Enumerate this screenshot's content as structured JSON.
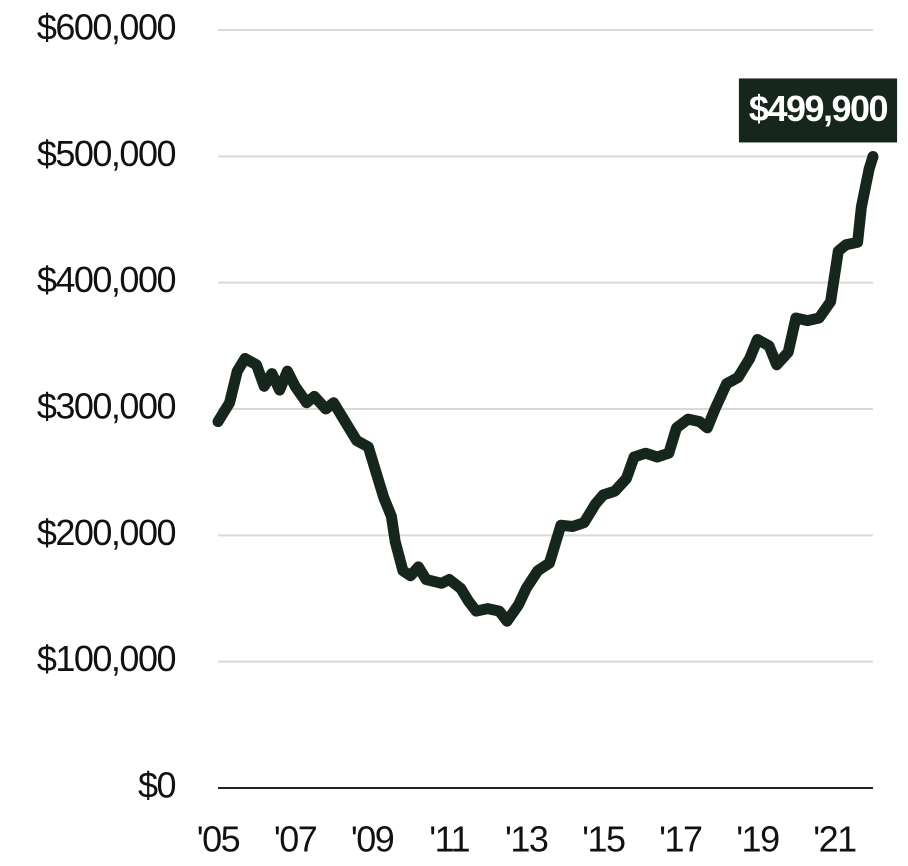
{
  "chart_data": {
    "type": "line",
    "x": [
      2005.0,
      2005.3,
      2005.5,
      2005.7,
      2006.0,
      2006.2,
      2006.4,
      2006.6,
      2006.8,
      2007.0,
      2007.3,
      2007.5,
      2007.8,
      2008.0,
      2008.3,
      2008.6,
      2008.9,
      2009.1,
      2009.3,
      2009.5,
      2009.6,
      2009.8,
      2010.0,
      2010.2,
      2010.4,
      2010.8,
      2011.0,
      2011.3,
      2011.5,
      2011.7,
      2012.0,
      2012.3,
      2012.5,
      2012.8,
      2013.0,
      2013.3,
      2013.6,
      2013.9,
      2014.2,
      2014.5,
      2014.8,
      2015.0,
      2015.3,
      2015.6,
      2015.8,
      2016.1,
      2016.4,
      2016.7,
      2016.9,
      2017.2,
      2017.5,
      2017.7,
      2017.9,
      2018.2,
      2018.5,
      2018.8,
      2019.0,
      2019.3,
      2019.5,
      2019.8,
      2020.0,
      2020.3,
      2020.6,
      2020.9,
      2021.1,
      2021.3,
      2021.6,
      2021.7,
      2021.9,
      2021.95,
      2022.0
    ],
    "series": [
      {
        "color": "#17261d",
        "values": [
          290000,
          305000,
          330000,
          340000,
          335000,
          318000,
          328000,
          315000,
          330000,
          318000,
          305000,
          310000,
          300000,
          305000,
          290000,
          275000,
          270000,
          250000,
          230000,
          215000,
          195000,
          172000,
          168000,
          175000,
          165000,
          162000,
          165000,
          158000,
          148000,
          140000,
          142000,
          140000,
          132000,
          145000,
          158000,
          172000,
          178000,
          208000,
          207000,
          210000,
          225000,
          232000,
          235000,
          245000,
          262000,
          265000,
          262000,
          265000,
          285000,
          292000,
          290000,
          285000,
          300000,
          320000,
          325000,
          340000,
          355000,
          350000,
          335000,
          345000,
          372000,
          370000,
          372000,
          385000,
          425000,
          430000,
          432000,
          460000,
          490000,
          495000,
          499900
        ]
      }
    ],
    "annotation": "$499,900",
    "xlim": [
      2005,
      2022
    ],
    "xticks": [
      {
        "value": 2005,
        "label": "'05"
      },
      {
        "value": 2007,
        "label": "'07"
      },
      {
        "value": 2009,
        "label": "'09"
      },
      {
        "value": 2011,
        "label": "'11"
      },
      {
        "value": 2013,
        "label": "'13"
      },
      {
        "value": 2015,
        "label": "'15"
      },
      {
        "value": 2017,
        "label": "'17"
      },
      {
        "value": 2019,
        "label": "'19"
      },
      {
        "value": 2021,
        "label": "'21"
      }
    ],
    "ylim": [
      0,
      600000
    ],
    "yticks": [
      {
        "value": 0,
        "label": "$0"
      },
      {
        "value": 100000,
        "label": "$100,000"
      },
      {
        "value": 200000,
        "label": "$200,000"
      },
      {
        "value": 300000,
        "label": "$300,000"
      },
      {
        "value": 400000,
        "label": "$400,000"
      },
      {
        "value": 500000,
        "label": "$500,000"
      },
      {
        "value": 600000,
        "label": "$600,000"
      }
    ],
    "grid": true
  }
}
